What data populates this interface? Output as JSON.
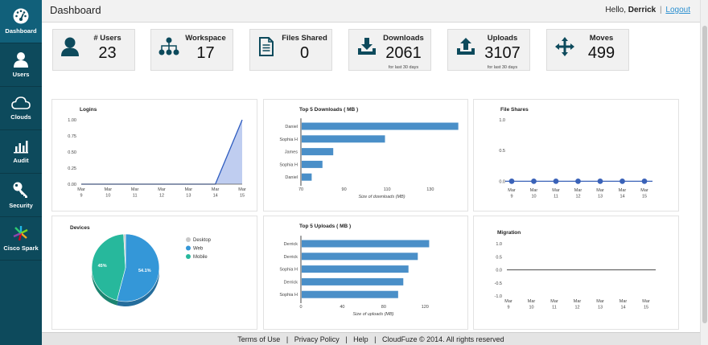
{
  "sidebar": {
    "items": [
      {
        "label": "Dashboard",
        "icon": "dashboard-icon"
      },
      {
        "label": "Users",
        "icon": "user-icon"
      },
      {
        "label": "Clouds",
        "icon": "cloud-icon"
      },
      {
        "label": "Audit",
        "icon": "bar-chart-icon"
      },
      {
        "label": "Security",
        "icon": "key-icon"
      },
      {
        "label": "Cisco Spark",
        "icon": "cisco-spark-icon"
      }
    ]
  },
  "header": {
    "title": "Dashboard",
    "greeting": "Hello,",
    "user": "Derrick",
    "separator": "|",
    "logout": "Logout"
  },
  "stats": [
    {
      "label": "# Users",
      "value": "23",
      "note": "",
      "icon": "user-icon"
    },
    {
      "label": "Workspace",
      "value": "17",
      "note": "",
      "icon": "sitemap-icon"
    },
    {
      "label": "Files Shared",
      "value": "0",
      "note": "",
      "icon": "document-icon"
    },
    {
      "label": "Downloads",
      "value": "2061",
      "note": "for last 30 days",
      "icon": "download-icon"
    },
    {
      "label": "Uploads",
      "value": "3107",
      "note": "for last 30 days",
      "icon": "upload-icon"
    },
    {
      "label": "Moves",
      "value": "499",
      "note": "",
      "icon": "move-icon"
    }
  ],
  "chart_data": [
    {
      "type": "area",
      "title": "Logins",
      "categories": [
        "Mar\n9",
        "Mar\n10",
        "Mar\n11",
        "Mar\n12",
        "Mar\n13",
        "Mar\n14",
        "Mar\n15"
      ],
      "values": [
        0,
        0,
        0,
        0,
        0,
        0,
        1.0
      ],
      "yticks": [
        "1.00",
        "0.75",
        "0.50",
        "0.25",
        "0.00"
      ],
      "ylim": [
        0,
        1
      ],
      "color": "#2e5cc0"
    },
    {
      "type": "bar",
      "orientation": "horizontal",
      "title": "Top 5 Downloads ( MB )",
      "categories": [
        "Daniel",
        "Sophia H",
        "James",
        "Sophia H",
        "Daniel"
      ],
      "values": [
        143,
        109,
        85,
        80,
        75
      ],
      "xlim": [
        70,
        145
      ],
      "xticks": [
        "70",
        "90",
        "110",
        "130"
      ],
      "xlabel": "Size of downloads (MB)",
      "color": "#4a8fc8"
    },
    {
      "type": "line",
      "title": "File Shares",
      "categories": [
        "Mar\n9",
        "Mar\n10",
        "Mar\n11",
        "Mar\n12",
        "Mar\n13",
        "Mar\n14",
        "Mar\n15"
      ],
      "values": [
        0,
        0,
        0,
        0,
        0,
        0,
        0
      ],
      "yticks": [
        "1.0",
        "0.5",
        "0.0"
      ],
      "ylim": [
        -0.1,
        1.0
      ],
      "color": "#3a62b8"
    },
    {
      "type": "pie",
      "title": "Devices",
      "slices": [
        {
          "label": "Desktop",
          "value": 0.9,
          "color": "#c8c8c8"
        },
        {
          "label": "Web",
          "value": 54.1,
          "color": "#3497d8"
        },
        {
          "label": "Mobile",
          "value": 45,
          "color": "#27b89c"
        }
      ],
      "slice_labels": [
        "54.1%",
        "45%"
      ]
    },
    {
      "type": "bar",
      "orientation": "horizontal",
      "title": "Top 5 Uploads ( MB )",
      "categories": [
        "Derrick",
        "Derrick",
        "Sophia H",
        "Derrick",
        "Sophia H"
      ],
      "values": [
        124,
        113,
        104,
        99,
        94
      ],
      "xlim": [
        0,
        140
      ],
      "xticks": [
        "0",
        "40",
        "80",
        "120"
      ],
      "xlabel": "Size of uploads (MB)",
      "color": "#4a8fc8"
    },
    {
      "type": "line",
      "title": "Migration",
      "categories": [
        "Mar\n9",
        "Mar\n10",
        "Mar\n11",
        "Mar\n12",
        "Mar\n13",
        "Mar\n14",
        "Mar\n15"
      ],
      "values": [
        0,
        0,
        0,
        0,
        0,
        0,
        0
      ],
      "yticks": [
        "1.0",
        "0.5",
        "0.0",
        "-0.5",
        "-1.0"
      ],
      "ylim": [
        -1,
        1
      ],
      "color": "#666666"
    }
  ],
  "footer": {
    "links": [
      "Terms of Use",
      "Privacy Policy",
      "Help"
    ],
    "separator": "|",
    "copyright": "CloudFuze © 2014. All rights reserved"
  }
}
